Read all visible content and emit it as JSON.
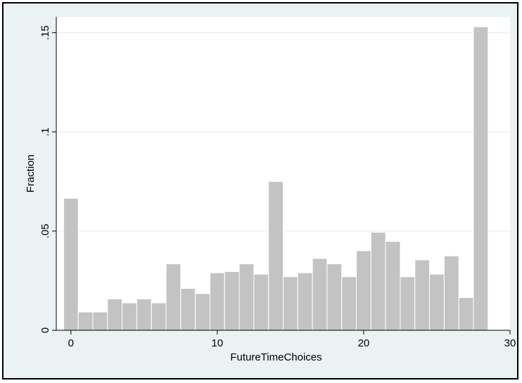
{
  "chart_data": {
    "type": "bar",
    "title": "",
    "xlabel": "FutureTimeChoices",
    "ylabel": "Fraction",
    "xlim": [
      -1,
      30
    ],
    "ylim": [
      0,
      0.158
    ],
    "x_ticks": [
      0,
      10,
      20,
      30
    ],
    "x_tick_labels": [
      "0",
      "10",
      "20",
      "30"
    ],
    "y_ticks": [
      0,
      0.05,
      0.1,
      0.15
    ],
    "y_tick_labels": [
      "0",
      ".05",
      ".1",
      ".15"
    ],
    "grid": true,
    "bar_width": 1,
    "x": [
      0,
      1,
      2,
      3,
      4,
      5,
      6,
      7,
      8,
      9,
      10,
      11,
      12,
      13,
      14,
      15,
      16,
      17,
      18,
      19,
      20,
      21,
      22,
      23,
      24,
      25,
      26,
      27,
      28
    ],
    "values": [
      0.0665,
      0.0092,
      0.0092,
      0.0158,
      0.0138,
      0.0158,
      0.0138,
      0.0335,
      0.0211,
      0.0185,
      0.029,
      0.0296,
      0.0335,
      0.0283,
      0.075,
      0.027,
      0.029,
      0.0362,
      0.0335,
      0.027,
      0.0401,
      0.0494,
      0.0448,
      0.027,
      0.0355,
      0.0283,
      0.0375,
      0.0165,
      0.153
    ],
    "colors": {
      "plot_bg": "#ffffff",
      "outer_bg": "#eaf2f3",
      "bar_fill": "#c3c3c3",
      "bar_stroke": "#ffffff",
      "grid": "#e4ecee",
      "axis": "#000000"
    }
  }
}
